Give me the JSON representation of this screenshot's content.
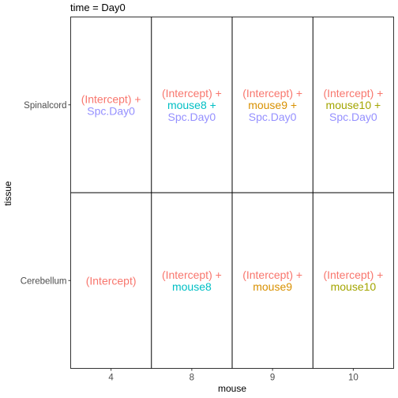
{
  "chart_data": {
    "type": "table",
    "title": "time = Day0",
    "xlabel": "mouse",
    "ylabel": "tissue",
    "x_categories": [
      "4",
      "8",
      "9",
      "10"
    ],
    "y_categories": [
      "Spinalcord",
      "Cerebellum"
    ],
    "grid": false,
    "colors": {
      "intercept": "#F8766D",
      "mouse8": "#00BFC4",
      "mouse9": "#D89000",
      "mouse10": "#A3A500",
      "spc_day0": "#9590FF"
    },
    "cells": [
      {
        "tissue": "Spinalcord",
        "mouse": "4",
        "lines": [
          {
            "text": "(Intercept) +",
            "color": "#F8766D"
          },
          {
            "text": "Spc.Day0",
            "color": "#9590FF"
          }
        ]
      },
      {
        "tissue": "Spinalcord",
        "mouse": "8",
        "lines": [
          {
            "text": "(Intercept) +",
            "color": "#F8766D"
          },
          {
            "text": "mouse8 +",
            "color": "#00BFC4"
          },
          {
            "text": "Spc.Day0",
            "color": "#9590FF"
          }
        ]
      },
      {
        "tissue": "Spinalcord",
        "mouse": "9",
        "lines": [
          {
            "text": "(Intercept) +",
            "color": "#F8766D"
          },
          {
            "text": "mouse9 +",
            "color": "#D89000"
          },
          {
            "text": "Spc.Day0",
            "color": "#9590FF"
          }
        ]
      },
      {
        "tissue": "Spinalcord",
        "mouse": "10",
        "lines": [
          {
            "text": "(Intercept) +",
            "color": "#F8766D"
          },
          {
            "text": "mouse10 +",
            "color": "#A3A500"
          },
          {
            "text": "Spc.Day0",
            "color": "#9590FF"
          }
        ]
      },
      {
        "tissue": "Cerebellum",
        "mouse": "4",
        "lines": [
          {
            "text": "(Intercept)",
            "color": "#F8766D"
          }
        ]
      },
      {
        "tissue": "Cerebellum",
        "mouse": "8",
        "lines": [
          {
            "text": "(Intercept) +",
            "color": "#F8766D"
          },
          {
            "text": "mouse8",
            "color": "#00BFC4"
          }
        ]
      },
      {
        "tissue": "Cerebellum",
        "mouse": "9",
        "lines": [
          {
            "text": "(Intercept) +",
            "color": "#F8766D"
          },
          {
            "text": "mouse9",
            "color": "#D89000"
          }
        ]
      },
      {
        "tissue": "Cerebellum",
        "mouse": "10",
        "lines": [
          {
            "text": "(Intercept) +",
            "color": "#F8766D"
          },
          {
            "text": "mouse10",
            "color": "#A3A500"
          }
        ]
      }
    ]
  }
}
